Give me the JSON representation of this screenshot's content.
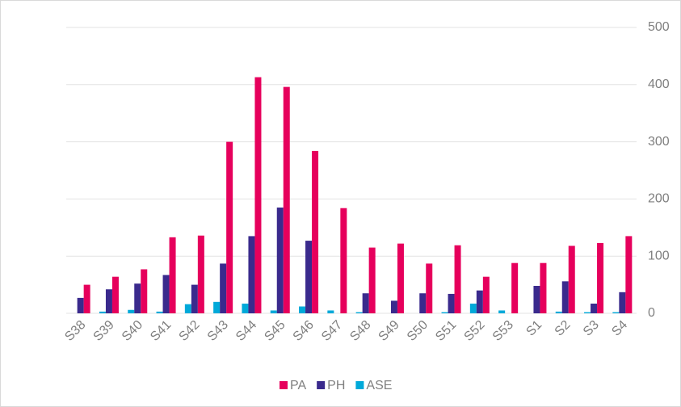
{
  "chart_data": {
    "type": "bar",
    "categories": [
      "S38",
      "S39",
      "S40",
      "S41",
      "S42",
      "S43",
      "S44",
      "S45",
      "S46",
      "S47",
      "S48",
      "S49",
      "S50",
      "S51",
      "S52",
      "S53",
      "S1",
      "S2",
      "S3",
      "S4"
    ],
    "series": [
      {
        "name": "PA",
        "color": "#e6005c",
        "values": [
          50,
          64,
          77,
          133,
          136,
          300,
          413,
          396,
          284,
          184,
          115,
          122,
          87,
          119,
          64,
          88,
          88,
          118,
          123,
          135
        ]
      },
      {
        "name": "PH",
        "color": "#3a2a8d",
        "values": [
          27,
          42,
          52,
          67,
          50,
          87,
          135,
          185,
          127,
          0,
          35,
          22,
          35,
          34,
          40,
          0,
          48,
          56,
          17,
          37
        ]
      },
      {
        "name": "ASE",
        "color": "#00a9d9",
        "values": [
          0,
          3,
          6,
          3,
          16,
          20,
          17,
          5,
          12,
          5,
          2,
          0,
          0,
          2,
          17,
          5,
          0,
          3,
          2,
          2
        ]
      }
    ],
    "ylim": [
      0,
      500
    ],
    "yticks": [
      0,
      100,
      200,
      300,
      400,
      500
    ],
    "grid": true,
    "legend": "bottom"
  }
}
